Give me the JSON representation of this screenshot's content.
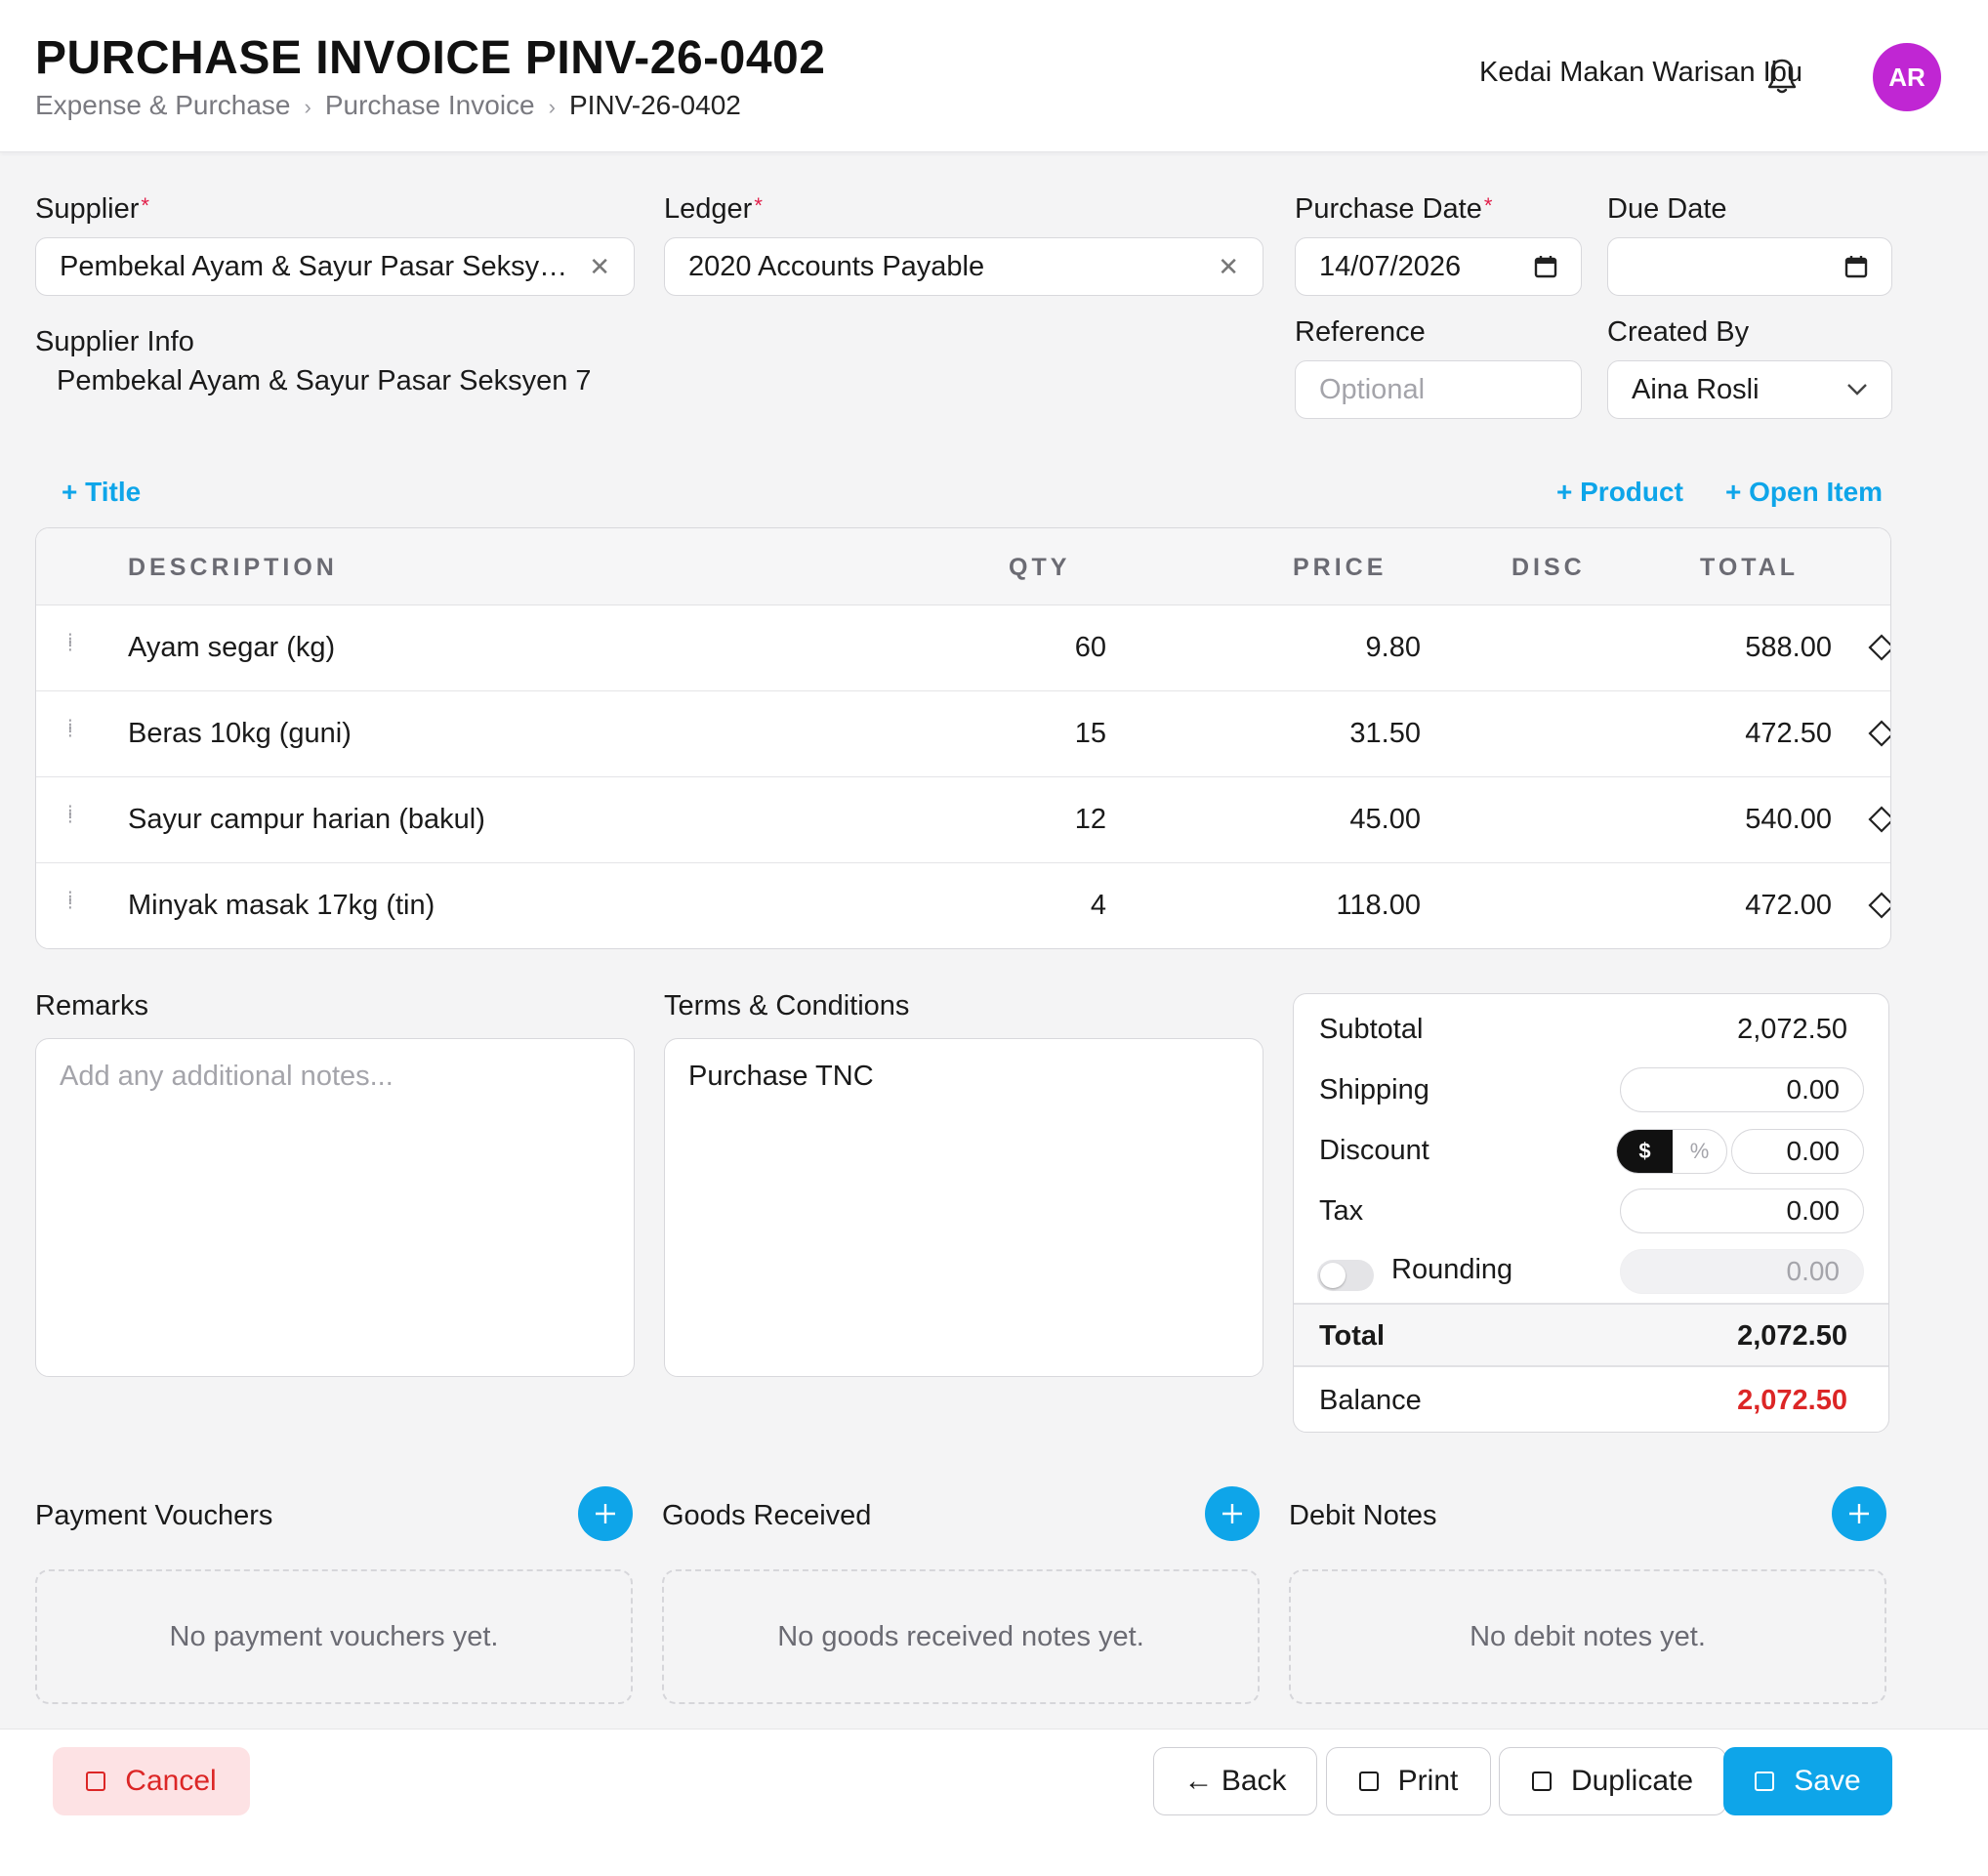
{
  "header": {
    "title": "PURCHASE INVOICE PINV-26-0402",
    "breadcrumb": [
      "Expense & Purchase",
      "Purchase Invoice",
      "PINV-26-0402"
    ],
    "company": "Kedai Makan Warisan Ibu",
    "avatar_initials": "AR"
  },
  "form": {
    "supplier_label": "Supplier",
    "supplier_value": "Pembekal Ayam & Sayur Pasar Seksye…",
    "ledger_label": "Ledger",
    "ledger_value": "2020 Accounts Payable",
    "purchase_date_label": "Purchase Date",
    "purchase_date_value": "14/07/2026",
    "due_date_label": "Due Date",
    "due_date_value": "",
    "reference_label": "Reference",
    "reference_placeholder": "Optional",
    "created_by_label": "Created By",
    "created_by_value": "Aina Rosli",
    "supplier_info_label": "Supplier Info",
    "supplier_info_value": "Pembekal Ayam & Sayur Pasar Seksyen 7",
    "required_mark": "*"
  },
  "actions": {
    "add_title": "+ Title",
    "add_product": "+ Product",
    "add_open_item": "+ Open Item"
  },
  "table": {
    "headers": {
      "description": "DESCRIPTION",
      "qty": "QTY",
      "price": "PRICE",
      "disc": "DISC",
      "total": "TOTAL"
    },
    "rows": [
      {
        "description": "Ayam segar (kg)",
        "qty": "60",
        "price": "9.80",
        "disc": "",
        "total": "588.00"
      },
      {
        "description": "Beras 10kg (guni)",
        "qty": "15",
        "price": "31.50",
        "disc": "",
        "total": "472.50"
      },
      {
        "description": "Sayur campur harian (bakul)",
        "qty": "12",
        "price": "45.00",
        "disc": "",
        "total": "540.00"
      },
      {
        "description": "Minyak masak 17kg (tin)",
        "qty": "4",
        "price": "118.00",
        "disc": "",
        "total": "472.00"
      }
    ]
  },
  "remarks": {
    "label": "Remarks",
    "placeholder": "Add any additional notes..."
  },
  "terms": {
    "label": "Terms & Conditions",
    "value": "Purchase TNC"
  },
  "totals": {
    "subtotal_label": "Subtotal",
    "subtotal": "2,072.50",
    "shipping_label": "Shipping",
    "shipping": "0.00",
    "discount_label": "Discount",
    "discount_mode_dollar": "$",
    "discount_mode_percent": "%",
    "discount": "0.00",
    "tax_label": "Tax",
    "tax": "0.00",
    "rounding_label": "Rounding",
    "rounding": "0.00",
    "total_label": "Total",
    "total": "2,072.50",
    "balance_label": "Balance",
    "balance": "2,072.50",
    "balance_color": "#dc2626"
  },
  "linked": {
    "payment_vouchers_title": "Payment Vouchers",
    "payment_vouchers_empty": "No payment vouchers yet.",
    "goods_received_title": "Goods Received",
    "goods_received_empty": "No goods received notes yet.",
    "debit_notes_title": "Debit Notes",
    "debit_notes_empty": "No debit notes yet."
  },
  "footer": {
    "cancel": "Cancel",
    "back": "← Back",
    "print": "Print",
    "duplicate": "Duplicate",
    "save": "Save"
  },
  "colors": {
    "accent": "#0ea5e9",
    "avatar": "#c026d3",
    "danger": "#dc2626"
  }
}
